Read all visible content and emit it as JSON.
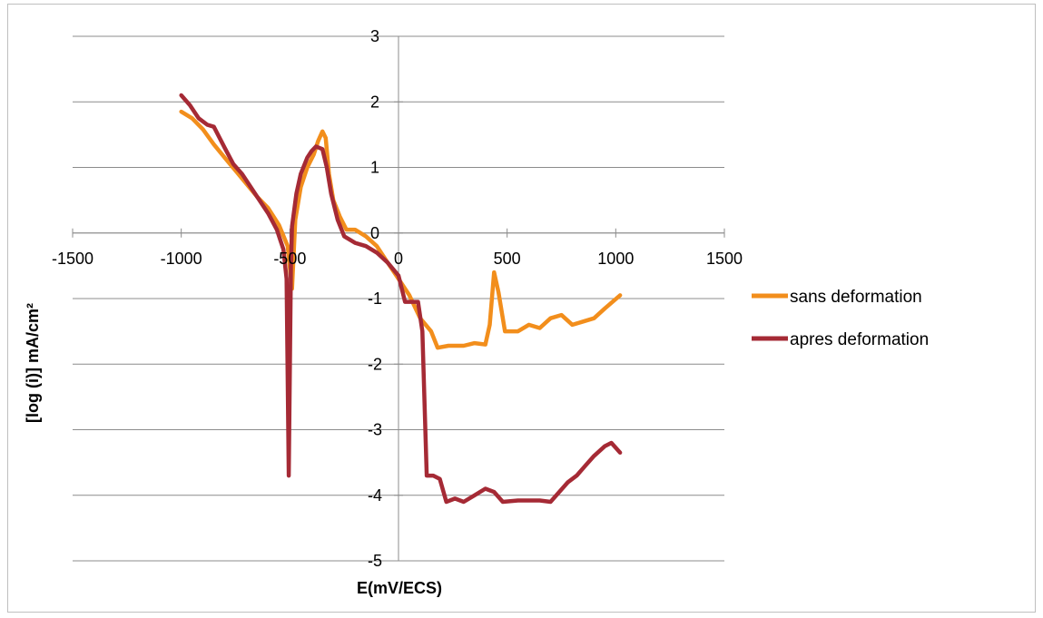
{
  "chart_data": {
    "type": "line",
    "title": "",
    "xlabel": "E(mV/ECS)",
    "ylabel": "[log (i)] mA/cm²",
    "xlim": [
      -1500,
      1500
    ],
    "ylim": [
      -5,
      3
    ],
    "xticks": [
      -1500,
      -1000,
      -500,
      0,
      500,
      1000,
      1500
    ],
    "yticks": [
      -5,
      -4,
      -3,
      -2,
      -1,
      0,
      1,
      2,
      3
    ],
    "xtick_labels": [
      "-1500",
      "-1000",
      "-500",
      "0",
      "500",
      "1000",
      "1500"
    ],
    "ytick_labels": [
      "-5",
      "-4",
      "-3",
      "-2",
      "-1",
      "0",
      "1",
      "2",
      "3"
    ],
    "grid": "horizontal",
    "legend_position": "right",
    "series": [
      {
        "name": "sans deformation",
        "color": "#F28E1C",
        "points": [
          [
            -1000,
            1.85
          ],
          [
            -950,
            1.75
          ],
          [
            -900,
            1.58
          ],
          [
            -850,
            1.35
          ],
          [
            -800,
            1.15
          ],
          [
            -750,
            0.95
          ],
          [
            -700,
            0.75
          ],
          [
            -650,
            0.55
          ],
          [
            -600,
            0.38
          ],
          [
            -550,
            0.12
          ],
          [
            -510,
            -0.2
          ],
          [
            -490,
            -0.85
          ],
          [
            -475,
            0.2
          ],
          [
            -450,
            0.7
          ],
          [
            -420,
            1.0
          ],
          [
            -390,
            1.2
          ],
          [
            -370,
            1.4
          ],
          [
            -350,
            1.55
          ],
          [
            -335,
            1.45
          ],
          [
            -320,
            0.9
          ],
          [
            -300,
            0.5
          ],
          [
            -270,
            0.25
          ],
          [
            -240,
            0.05
          ],
          [
            -200,
            0.05
          ],
          [
            -150,
            -0.05
          ],
          [
            -100,
            -0.2
          ],
          [
            -50,
            -0.45
          ],
          [
            0,
            -0.7
          ],
          [
            50,
            -0.95
          ],
          [
            100,
            -1.3
          ],
          [
            150,
            -1.5
          ],
          [
            180,
            -1.75
          ],
          [
            230,
            -1.72
          ],
          [
            300,
            -1.72
          ],
          [
            350,
            -1.68
          ],
          [
            400,
            -1.7
          ],
          [
            420,
            -1.4
          ],
          [
            440,
            -0.6
          ],
          [
            460,
            -0.9
          ],
          [
            490,
            -1.5
          ],
          [
            550,
            -1.5
          ],
          [
            600,
            -1.4
          ],
          [
            650,
            -1.45
          ],
          [
            700,
            -1.3
          ],
          [
            750,
            -1.25
          ],
          [
            800,
            -1.4
          ],
          [
            850,
            -1.35
          ],
          [
            900,
            -1.3
          ],
          [
            950,
            -1.15
          ],
          [
            1020,
            -0.95
          ]
        ]
      },
      {
        "name": "apres deformation",
        "color": "#A52A35",
        "points": [
          [
            -1000,
            2.1
          ],
          [
            -960,
            1.95
          ],
          [
            -920,
            1.75
          ],
          [
            -880,
            1.65
          ],
          [
            -850,
            1.62
          ],
          [
            -800,
            1.3
          ],
          [
            -760,
            1.05
          ],
          [
            -720,
            0.9
          ],
          [
            -680,
            0.7
          ],
          [
            -640,
            0.5
          ],
          [
            -600,
            0.3
          ],
          [
            -560,
            0.05
          ],
          [
            -530,
            -0.25
          ],
          [
            -515,
            -0.7
          ],
          [
            -505,
            -3.7
          ],
          [
            -495,
            -0.5
          ],
          [
            -490,
            0.1
          ],
          [
            -470,
            0.6
          ],
          [
            -450,
            0.9
          ],
          [
            -420,
            1.15
          ],
          [
            -400,
            1.25
          ],
          [
            -380,
            1.32
          ],
          [
            -350,
            1.28
          ],
          [
            -330,
            1.0
          ],
          [
            -310,
            0.6
          ],
          [
            -280,
            0.2
          ],
          [
            -250,
            -0.05
          ],
          [
            -200,
            -0.15
          ],
          [
            -150,
            -0.2
          ],
          [
            -100,
            -0.3
          ],
          [
            -50,
            -0.45
          ],
          [
            0,
            -0.65
          ],
          [
            30,
            -1.05
          ],
          [
            60,
            -1.05
          ],
          [
            90,
            -1.05
          ],
          [
            110,
            -1.5
          ],
          [
            130,
            -3.7
          ],
          [
            160,
            -3.7
          ],
          [
            190,
            -3.75
          ],
          [
            220,
            -4.1
          ],
          [
            260,
            -4.05
          ],
          [
            300,
            -4.1
          ],
          [
            350,
            -4.0
          ],
          [
            400,
            -3.9
          ],
          [
            440,
            -3.95
          ],
          [
            480,
            -4.1
          ],
          [
            550,
            -4.08
          ],
          [
            650,
            -4.08
          ],
          [
            700,
            -4.1
          ],
          [
            740,
            -3.95
          ],
          [
            780,
            -3.8
          ],
          [
            820,
            -3.7
          ],
          [
            860,
            -3.55
          ],
          [
            900,
            -3.4
          ],
          [
            950,
            -3.25
          ],
          [
            980,
            -3.2
          ],
          [
            1020,
            -3.35
          ]
        ]
      }
    ]
  }
}
